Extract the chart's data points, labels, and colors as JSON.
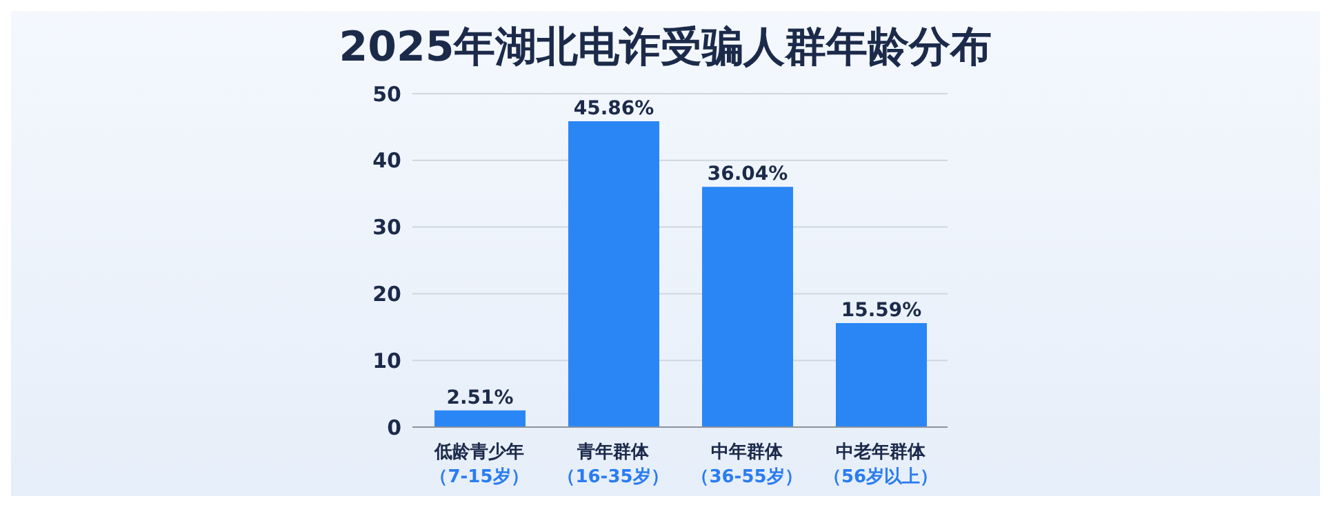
{
  "chart_data": {
    "type": "bar",
    "title": "2025年湖北电诈受骗人群年龄分布",
    "categories": [
      "低龄青少年（7-15岁）",
      "青年群体（16-35岁）",
      "中年群体（36-55岁）",
      "中老年群体（56岁以上）"
    ],
    "values": [
      2.51,
      45.86,
      36.04,
      15.59
    ],
    "value_labels": [
      "2.51%",
      "45.86%",
      "36.04%",
      "15.59%"
    ],
    "color": "#2b86f5",
    "ylim": [
      0,
      50
    ],
    "yticks": [
      0,
      10,
      20,
      30,
      40,
      50
    ],
    "grid": "y"
  }
}
